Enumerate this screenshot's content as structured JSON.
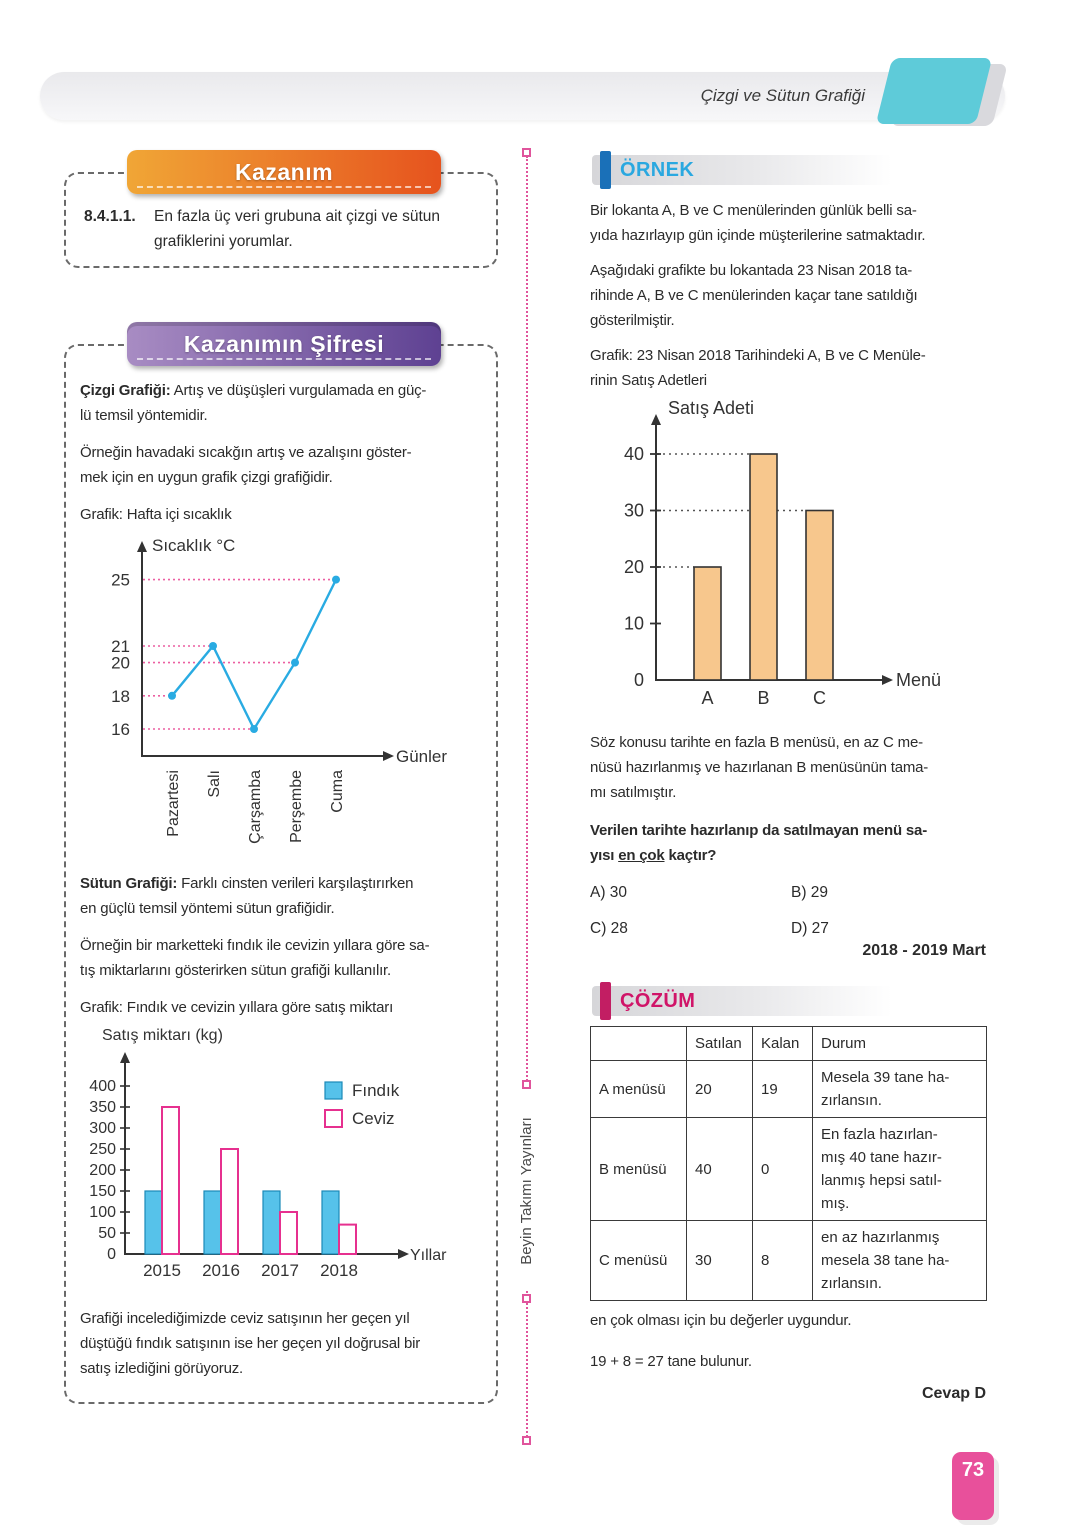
{
  "page": {
    "header_title": "Çizgi ve Sütun Grafiği",
    "page_number": "73",
    "publisher": "Beyin Takımı Yayınları",
    "accent_teal": "#5ecbd9",
    "accent_pink": "#e0549c"
  },
  "kazanim": {
    "banner": "Kazanım",
    "code": "8.4.1.1.",
    "text": "En fazla üç veri grubuna ait çizgi ve sütun\ngrafiklerini yorumlar."
  },
  "sifre": {
    "banner": "Kazanımın Şifresi",
    "p1_lead": "Çizgi Grafiği:",
    "p1_text": " Artış ve düşüşleri vurgulamada en güç-\nlü temsil yöntemidir.",
    "p2": "Örneğin havadaki sıcakğın artış ve azalışını göster-\nmek için en uygun grafik çizgi grafiğidir.",
    "p3": "Grafik: Hafta içi sıcaklık",
    "p4_lead": "Sütun Grafiği:",
    "p4_text": " Farklı cinsten verileri karşılaştırırken\nen güçlü temsil yöntemi sütun grafiğidir.",
    "p5": "Örneğin bir marketteki fındık ile cevizin yıllara göre sa-\ntış miktarlarını gösterirken sütun grafiği kullanılır.",
    "p6": "Grafik: Fındık ve cevizin yıllara göre satış miktarı",
    "p7": "Grafiği incelediğimizde ceviz satışının her geçen yıl\ndüştüğü fındık satışının ise her geçen yıl doğrusal bir\nsatış izlediğini görüyoruz."
  },
  "ornek": {
    "header": "ÖRNEK",
    "p1": "Bir lokanta A, B ve C menülerinden günlük belli sa-\nyıda hazırlayıp gün içinde müşterilerine satmaktadır.",
    "p2": "Aşağıdaki grafikte bu lokantada 23 Nisan 2018 ta-\nrihinde A, B ve C menülerinden kaçar tane satıldığı\ngösterilmiştir.",
    "p3": "Grafik: 23 Nisan 2018 Tarihindeki A, B ve C Menüle-\nrinin Satış Adetleri",
    "p4": "Söz konusu tarihte en fazla B menüsü, en az C me-\nnüsü hazırlanmış ve hazırlanan B menüsünün tama-\nmı satılmıştır.",
    "q_pre": "Verilen tarihte hazırlanıp da satılmayan menü sa-\nyısı ",
    "q_underlined": "en çok",
    "q_post": " kaçtır?",
    "options": [
      "A) 30",
      "B) 29",
      "C) 28",
      "D) 27"
    ],
    "source": "2018 - 2019 Mart"
  },
  "cozum": {
    "header": "ÇÖZÜM",
    "table": {
      "headers": [
        "",
        "Satılan",
        "Kalan",
        "Durum"
      ],
      "rows": [
        {
          "label": "A menüsü",
          "satilan": "20",
          "kalan": "19",
          "durum": "Mesela 39 tane ha-\nzırlansın."
        },
        {
          "label": "B menüsü",
          "satilan": "40",
          "kalan": "0",
          "durum": "En fazla hazırlan-\nmış 40 tane hazır-\nlanmış hepsi satıl-\nmış."
        },
        {
          "label": "C menüsü",
          "satilan": "30",
          "kalan": "8",
          "durum": "en az hazırlanmış\nmesela 38 tane ha-\nzırlansın."
        }
      ]
    },
    "p1": "en çok olması için bu değerler uygundur.",
    "p2": "19 + 8 = 27 tane bulunur.",
    "answer": "Cevap D"
  },
  "chart_data": [
    {
      "type": "line",
      "title": "Grafik: Hafta içi sıcaklık",
      "ylabel": "Sıcaklık °C",
      "xlabel": "Günler",
      "categories": [
        "Pazartesi",
        "Salı",
        "Çarşamba",
        "Perşembe",
        "Cuma"
      ],
      "values": [
        18,
        21,
        16,
        20,
        25
      ],
      "yticks": [
        16,
        18,
        20,
        21,
        25
      ],
      "ylim": [
        14,
        27
      ],
      "grid": "dotted-guides-to-points",
      "line_color": "#29abe2",
      "guide_color": "#ec5fa1"
    },
    {
      "type": "bar",
      "title": "Grafik: Fındık ve cevizin yıllara göre satış miktarı",
      "ylabel": "Satış miktarı (kg)",
      "xlabel": "Yıllar",
      "categories": [
        "2015",
        "2016",
        "2017",
        "2018"
      ],
      "series": [
        {
          "name": "Fındık",
          "values": [
            150,
            150,
            150,
            150
          ],
          "fill": "#56c2ea",
          "stroke": "#1b8ab8"
        },
        {
          "name": "Ceviz",
          "values": [
            350,
            250,
            100,
            70
          ],
          "fill": "#ffffff",
          "stroke": "#e6308f"
        }
      ],
      "yticks": [
        0,
        50,
        100,
        150,
        200,
        250,
        300,
        350,
        400
      ],
      "ylim": [
        0,
        450
      ],
      "legend_position": "upper-right"
    },
    {
      "type": "bar",
      "title": "Grafik: 23 Nisan 2018 Tarihindeki A, B ve C Menülerinin Satış Adetleri",
      "ylabel": "Satış Adeti",
      "xlabel": "Menü",
      "categories": [
        "A",
        "B",
        "C"
      ],
      "values": [
        20,
        40,
        30
      ],
      "yticks": [
        0,
        10,
        20,
        30,
        40
      ],
      "ylim": [
        0,
        47
      ],
      "grid": "dotted-guides-to-bars",
      "bar_fill": "#f7c78d",
      "bar_stroke": "#333333",
      "guide_color": "#555555"
    }
  ]
}
